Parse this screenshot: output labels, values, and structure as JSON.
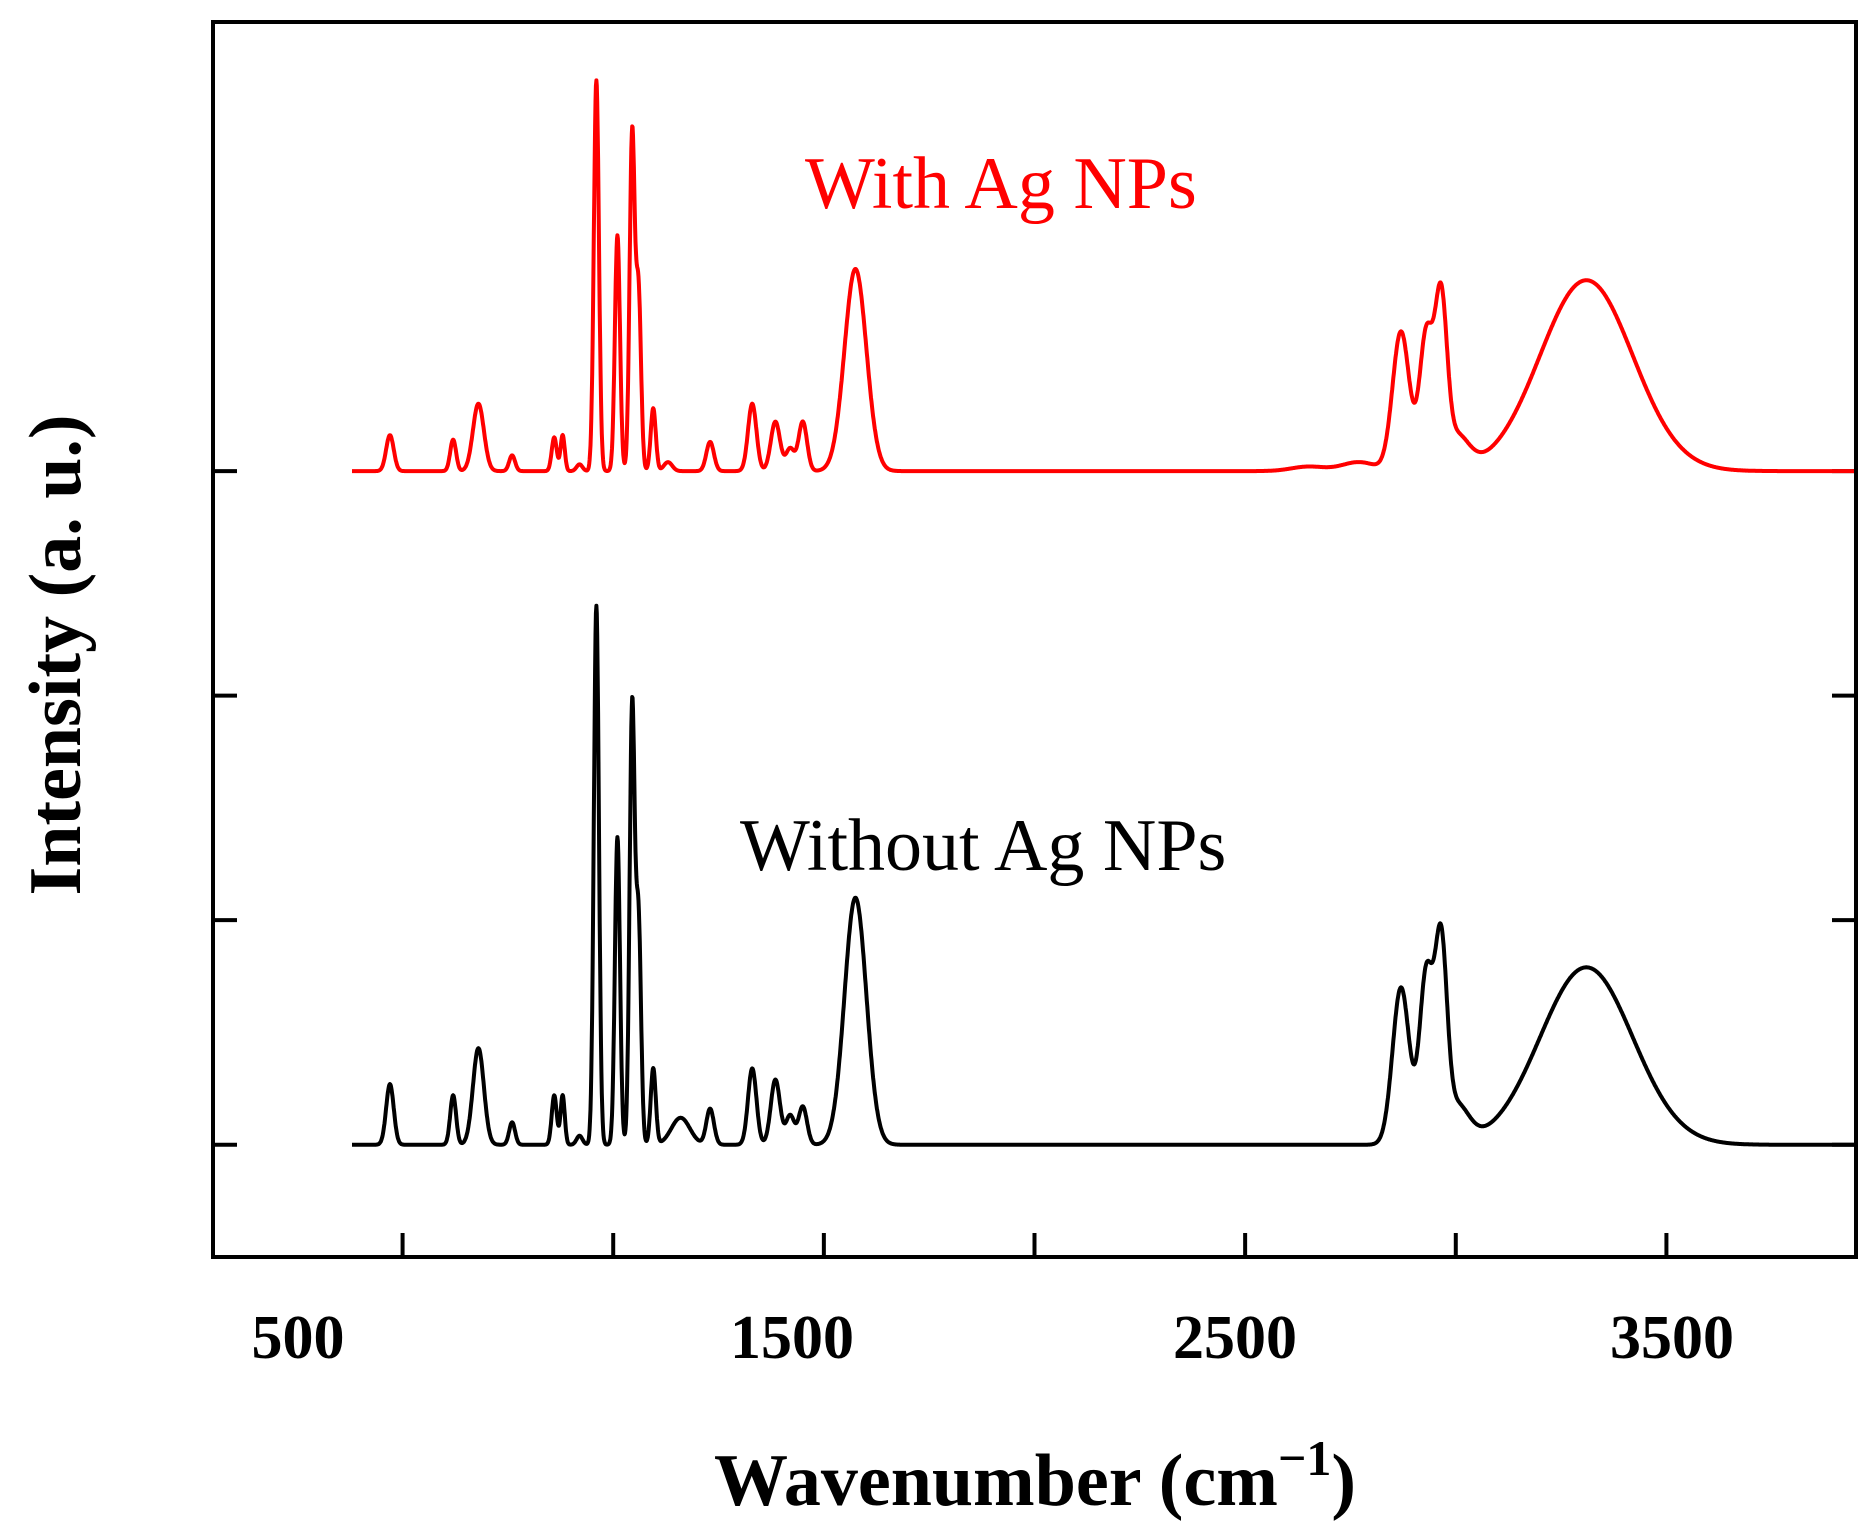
{
  "chart_data": {
    "type": "line",
    "title": "",
    "xlabel": "Wavenumber (cm",
    "xlabel_superscript": "−1",
    "xlabel_close": ")",
    "ylabel": "Intensity (a. u.)",
    "xlim": [
      50,
      3950
    ],
    "ylim": [
      -0.5,
      5.0
    ],
    "x_ticks": [
      500,
      1500,
      2500,
      3500
    ],
    "x_tick_labels": [
      "500",
      "1500",
      "2500",
      "3500"
    ],
    "x_minor_ticks": [
      1000,
      2000,
      3000
    ],
    "y_ticks": [
      0,
      1,
      2,
      3
    ],
    "y_tick_labels_visible": false,
    "grid": false,
    "colors": {
      "with": "#ff0000",
      "without": "#000000",
      "axis": "#000000"
    },
    "series": [
      {
        "name": "With Ag NPs",
        "label": "With Ag NPs",
        "color": "#ff0000",
        "baseline": 3.0,
        "range": [
          380,
          3950
        ],
        "peaks": [
          [
            470,
            0.16,
            9
          ],
          [
            620,
            0.14,
            7
          ],
          [
            680,
            0.3,
            13
          ],
          [
            760,
            0.07,
            7
          ],
          [
            860,
            0.15,
            6
          ],
          [
            880,
            0.16,
            5
          ],
          [
            920,
            0.03,
            7
          ],
          [
            960,
            1.74,
            6
          ],
          [
            1010,
            1.05,
            6
          ],
          [
            1045,
            1.5,
            6
          ],
          [
            1060,
            0.8,
            6
          ],
          [
            1095,
            0.28,
            6
          ],
          [
            1130,
            0.04,
            10
          ],
          [
            1230,
            0.13,
            9
          ],
          [
            1330,
            0.3,
            10
          ],
          [
            1385,
            0.22,
            11
          ],
          [
            1420,
            0.1,
            10
          ],
          [
            1450,
            0.22,
            10
          ],
          [
            1575,
            0.9,
            26
          ],
          [
            2650,
            0.02,
            40
          ],
          [
            2770,
            0.04,
            40
          ],
          [
            2870,
            0.62,
            20
          ],
          [
            2930,
            0.6,
            16
          ],
          [
            2965,
            0.7,
            14
          ],
          [
            3000,
            0.15,
            30
          ],
          [
            3310,
            0.85,
            110
          ]
        ]
      },
      {
        "name": "Without Ag NPs",
        "label": "Without Ag NPs",
        "color": "#000000",
        "baseline": 0.0,
        "range": [
          380,
          3950
        ],
        "peaks": [
          [
            470,
            0.27,
            9
          ],
          [
            620,
            0.22,
            7
          ],
          [
            680,
            0.43,
            13
          ],
          [
            760,
            0.1,
            7
          ],
          [
            860,
            0.22,
            6
          ],
          [
            880,
            0.22,
            5
          ],
          [
            920,
            0.04,
            7
          ],
          [
            960,
            2.4,
            6
          ],
          [
            1010,
            1.37,
            6
          ],
          [
            1045,
            1.95,
            6
          ],
          [
            1060,
            1.0,
            6
          ],
          [
            1095,
            0.34,
            6
          ],
          [
            1160,
            0.12,
            22
          ],
          [
            1230,
            0.16,
            9
          ],
          [
            1330,
            0.34,
            10
          ],
          [
            1385,
            0.29,
            11
          ],
          [
            1420,
            0.13,
            10
          ],
          [
            1450,
            0.17,
            10
          ],
          [
            1575,
            1.1,
            26
          ],
          [
            2870,
            0.7,
            20
          ],
          [
            2930,
            0.75,
            16
          ],
          [
            2965,
            0.82,
            14
          ],
          [
            3000,
            0.17,
            30
          ],
          [
            3310,
            0.79,
            110
          ]
        ]
      }
    ]
  }
}
